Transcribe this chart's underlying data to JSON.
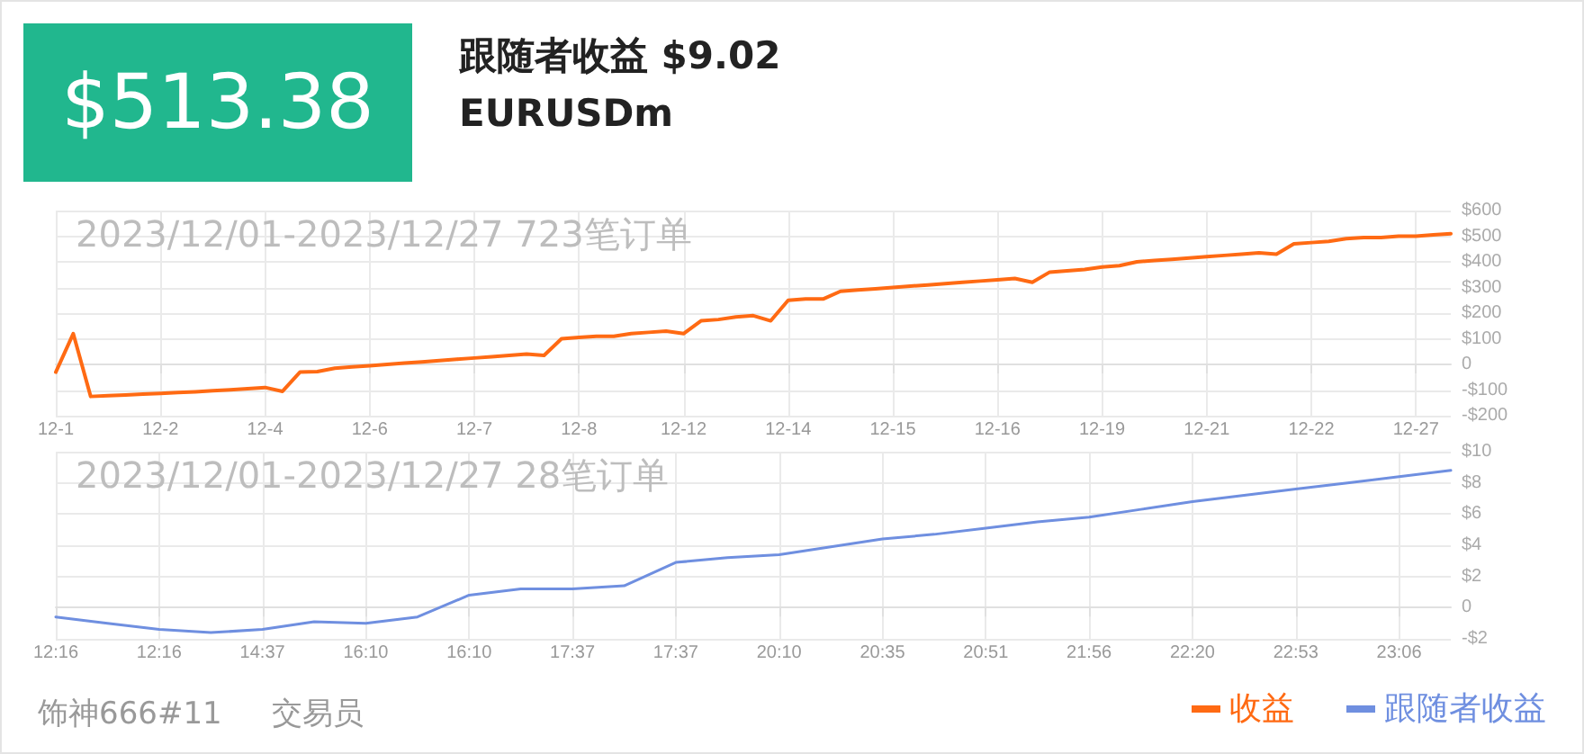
{
  "chart_data": [
    {
      "type": "line",
      "title": "2023/12/01-2023/12/27 723笔订单",
      "annotations": [
        "$513.38",
        "跟随者收益 $9.02",
        "EURUSDm",
        "饰神666#11",
        "交易员"
      ],
      "categories": [
        "12-1",
        null,
        null,
        null,
        null,
        null,
        "12-2",
        null,
        null,
        null,
        null,
        null,
        "12-4",
        null,
        null,
        null,
        null,
        null,
        "12-6",
        null,
        null,
        null,
        null,
        null,
        "12-7",
        null,
        null,
        null,
        null,
        null,
        "12-8",
        null,
        null,
        null,
        null,
        null,
        "12-12",
        null,
        null,
        null,
        null,
        null,
        "12-14",
        null,
        null,
        null,
        null,
        null,
        "12-15",
        null,
        null,
        null,
        null,
        null,
        "12-16",
        null,
        null,
        null,
        null,
        null,
        "12-19",
        null,
        null,
        null,
        null,
        null,
        "12-21",
        null,
        null,
        null,
        null,
        null,
        "12-22",
        null,
        null,
        null,
        null,
        null,
        "12-27",
        null,
        null
      ],
      "series": [
        {
          "name": "收益",
          "color": "#ff6a13",
          "values": [
            -30,
            120,
            -125,
            -122,
            -119,
            -116,
            -113,
            -110,
            -107,
            -103,
            -99,
            -95,
            -90,
            -105,
            -30,
            -28,
            -15,
            -10,
            -5,
            0,
            5,
            10,
            15,
            20,
            25,
            30,
            35,
            40,
            35,
            100,
            105,
            110,
            110,
            120,
            125,
            130,
            120,
            170,
            175,
            185,
            190,
            170,
            250,
            255,
            255,
            285,
            290,
            295,
            300,
            305,
            310,
            315,
            320,
            325,
            330,
            335,
            320,
            360,
            365,
            370,
            380,
            385,
            400,
            405,
            410,
            415,
            420,
            425,
            430,
            435,
            430,
            470,
            475,
            480,
            490,
            495,
            495,
            500,
            500,
            505,
            510
          ]
        }
      ],
      "ylim": [
        -200,
        600
      ],
      "yticks": [
        {
          "value": -200,
          "label": "-$200"
        },
        {
          "value": -100,
          "label": "-$100"
        },
        0,
        {
          "value": 100,
          "label": "$100"
        },
        {
          "value": 200,
          "label": "$200"
        },
        {
          "value": 300,
          "label": "$300"
        },
        {
          "value": 400,
          "label": "$400"
        },
        {
          "value": 500,
          "label": "$500"
        },
        {
          "value": 600,
          "label": "$600"
        }
      ],
      "grid": true,
      "legend": "bottom right",
      "marker": "none",
      "line_style": "solid"
    },
    {
      "type": "line",
      "title": "2023/12/01-2023/12/27 28笔订单",
      "categories": [
        "12:16",
        null,
        "12:16",
        null,
        "14:37",
        null,
        "16:10",
        null,
        "16:10",
        null,
        "17:37",
        null,
        "17:37",
        null,
        "20:10",
        null,
        "20:35",
        null,
        "20:51",
        null,
        "21:56",
        null,
        "22:20",
        null,
        "22:53",
        null,
        "23:06",
        null
      ],
      "series": [
        {
          "name": "跟随者收益",
          "color": "#6f8fe0",
          "values": [
            -0.6,
            -1.0,
            -1.4,
            -1.6,
            -1.4,
            -0.9,
            -1.0,
            -0.6,
            0.8,
            1.2,
            1.2,
            1.4,
            2.9,
            3.2,
            3.4,
            3.9,
            4.4,
            4.7,
            5.1,
            5.5,
            5.8,
            6.3,
            6.8,
            7.2,
            7.6,
            8.0,
            8.4,
            8.8
          ]
        }
      ],
      "ylim": [
        -2,
        10
      ],
      "yticks": [
        {
          "value": -2,
          "label": "-$2"
        },
        0,
        {
          "value": 2,
          "label": "$2"
        },
        {
          "value": 4,
          "label": "$4"
        },
        {
          "value": 6,
          "label": "$6"
        },
        {
          "value": 8,
          "label": "$8"
        },
        {
          "value": 10,
          "label": "$10"
        }
      ],
      "grid": true,
      "legend": "bottom right",
      "marker": "none",
      "line_style": "solid"
    }
  ]
}
